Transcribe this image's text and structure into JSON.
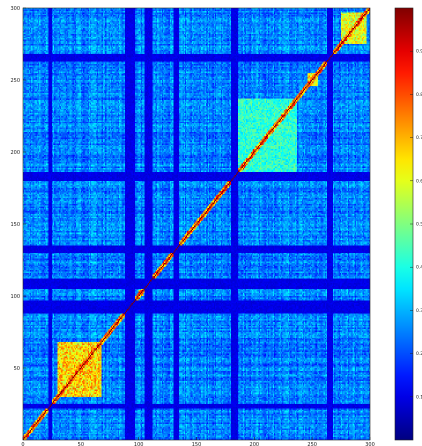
{
  "chart_data": {
    "type": "heatmap",
    "title": "",
    "xlabel": "",
    "ylabel": "",
    "n": 300,
    "xlim": [
      0,
      300
    ],
    "ylim": [
      0,
      300
    ],
    "x_ticks": [
      0,
      50,
      100,
      150,
      200,
      250,
      300
    ],
    "y_ticks": [
      50,
      100,
      150,
      200,
      250,
      300
    ],
    "colorbar": {
      "colormap": "jet",
      "range": [
        0.0,
        1.0
      ],
      "tick_labels": [
        "0.1",
        "0.2",
        "0.3",
        "0.4",
        "0.5",
        "0.6",
        "0.7",
        "0.8",
        "0.9"
      ],
      "tick_values": [
        0.1,
        0.2,
        0.3,
        0.4,
        0.5,
        0.6,
        0.7,
        0.8,
        0.9
      ]
    },
    "diagonal_value": 1.0,
    "background_level": 0.25,
    "low_bands": [
      {
        "start": 22,
        "end": 25
      },
      {
        "start": 88,
        "end": 97
      },
      {
        "start": 105,
        "end": 112
      },
      {
        "start": 130,
        "end": 135
      },
      {
        "start": 180,
        "end": 186
      },
      {
        "start": 263,
        "end": 268
      }
    ],
    "clusters": [
      {
        "start": 30,
        "end": 68,
        "level": 0.72
      },
      {
        "start": 100,
        "end": 104,
        "level": 0.8
      },
      {
        "start": 185,
        "end": 237,
        "level": 0.45
      },
      {
        "start": 246,
        "end": 255,
        "level": 0.7
      },
      {
        "start": 275,
        "end": 297,
        "level": 0.65
      }
    ]
  }
}
